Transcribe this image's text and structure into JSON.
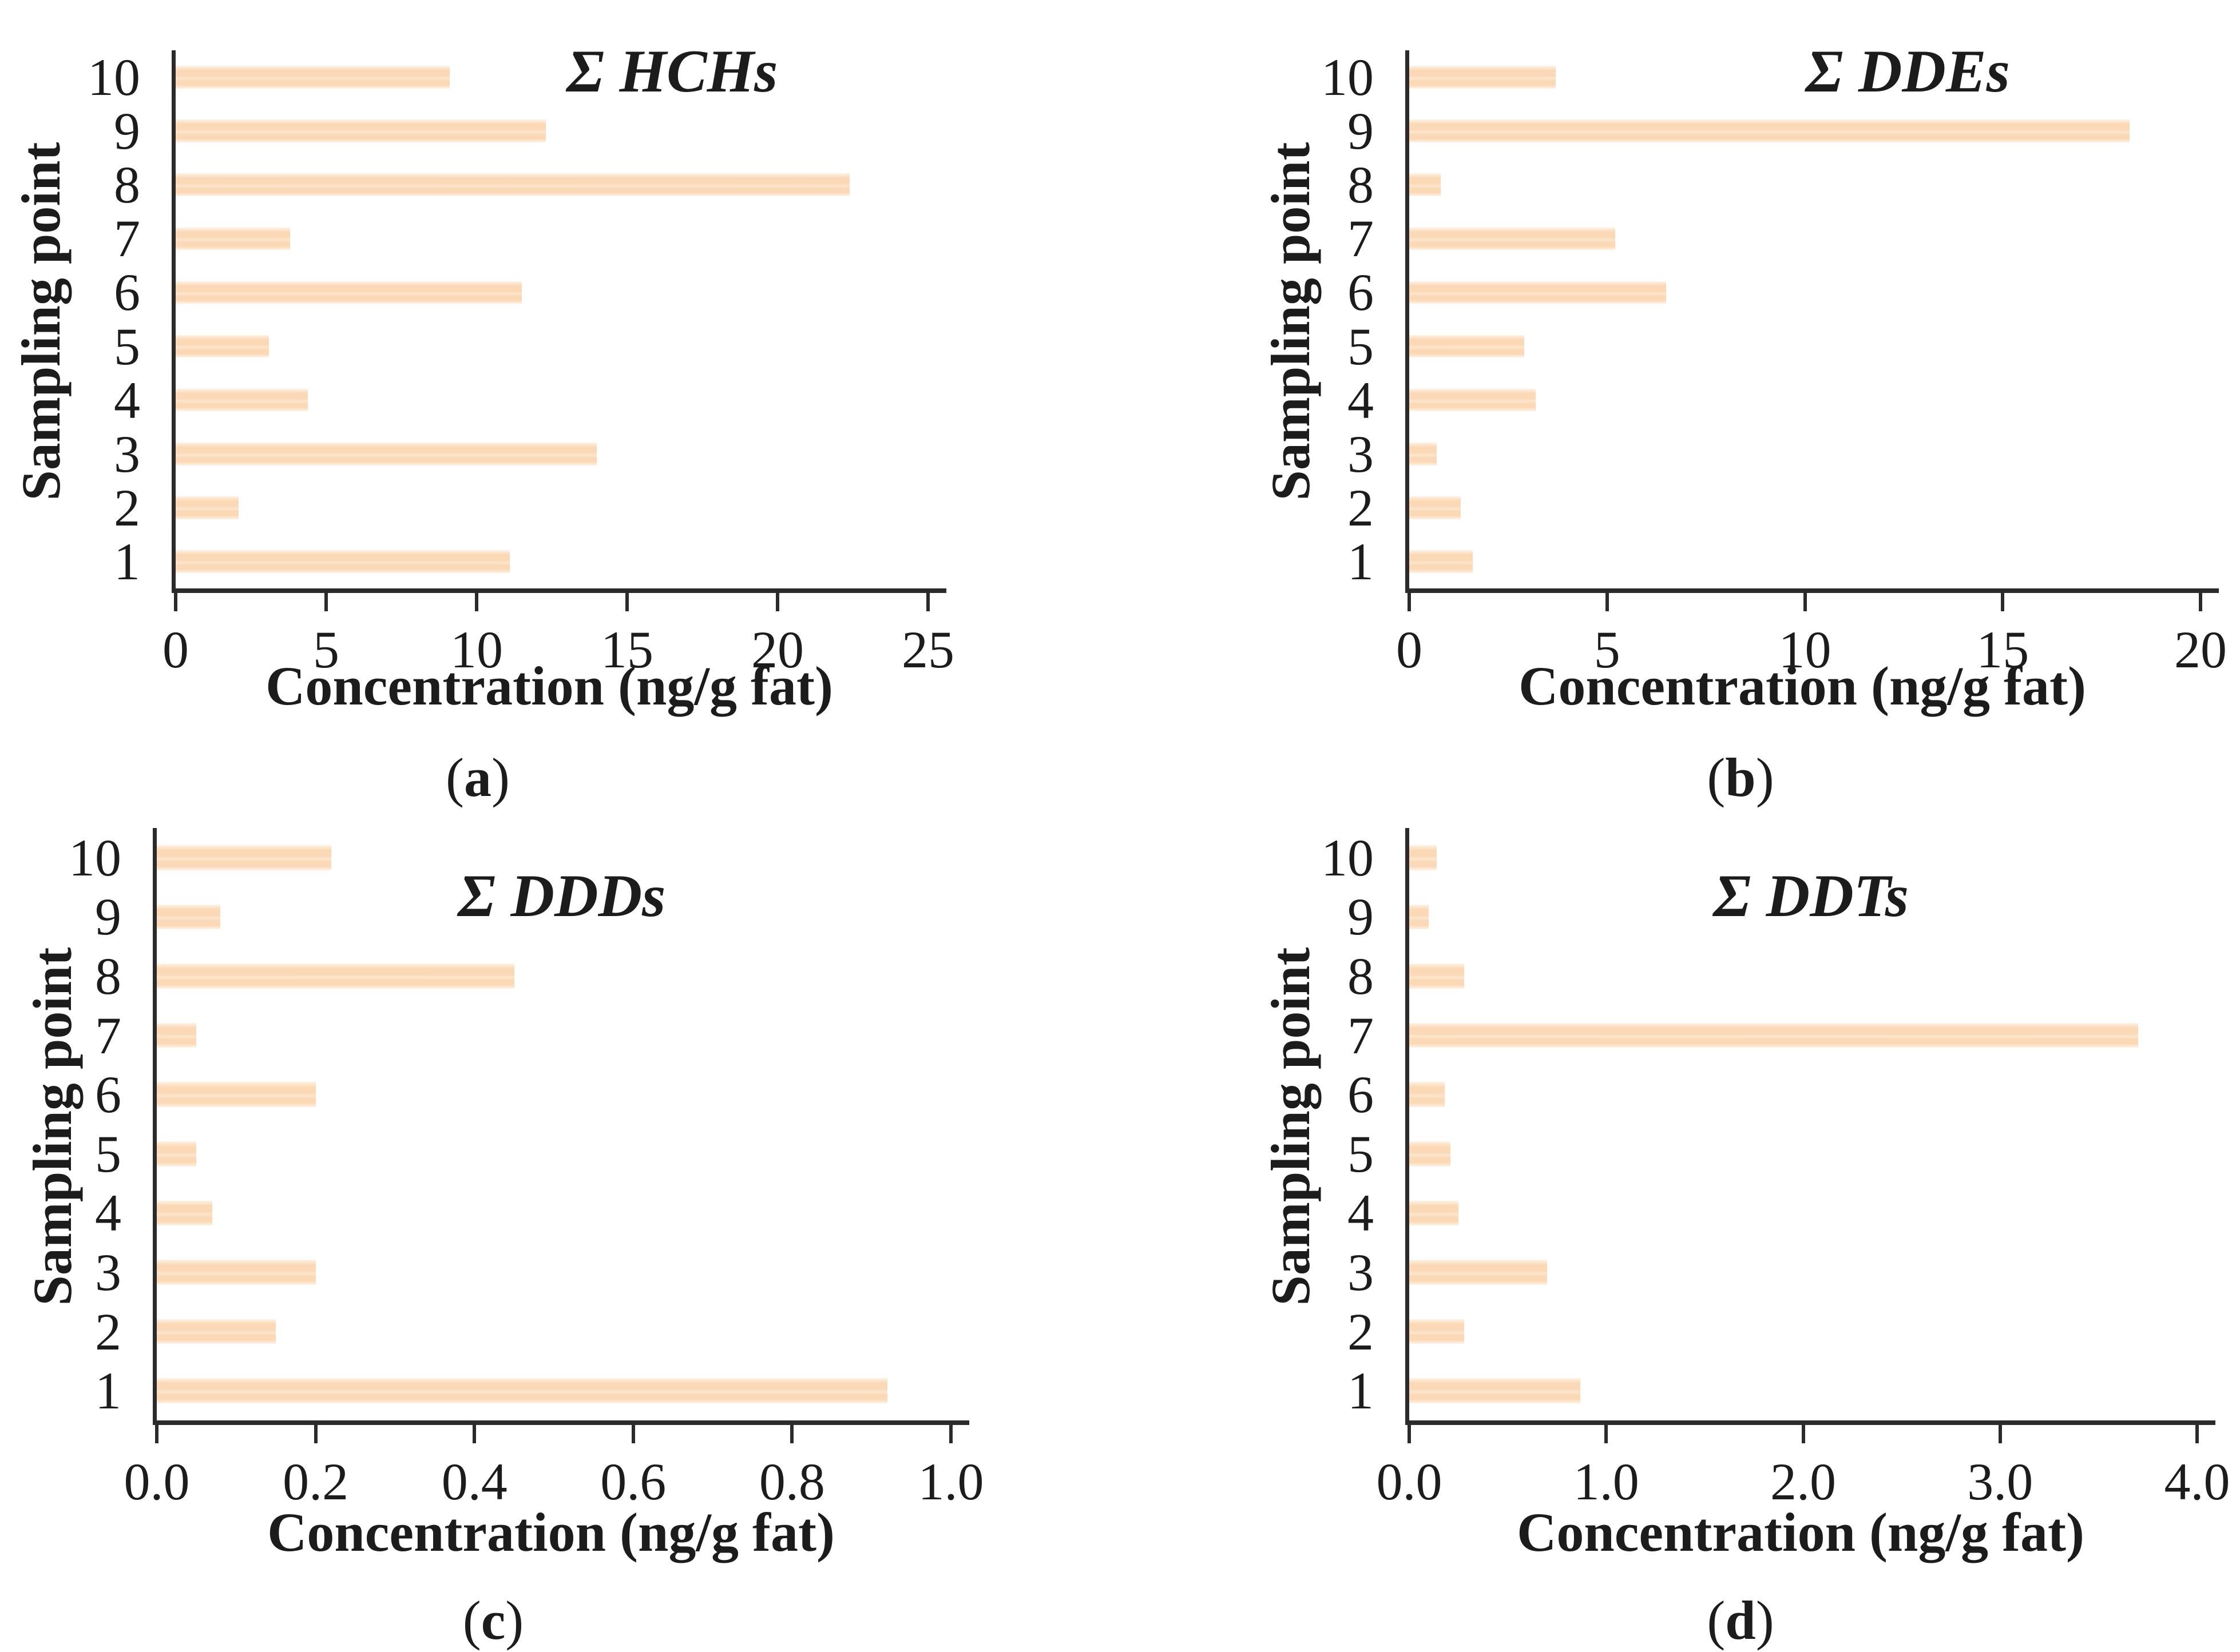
{
  "figure": {
    "background": "#ffffff",
    "text_color": "#1c1c1c",
    "axis_color": "#2b2b2b",
    "bar_fill_color": "#fbd9b6",
    "bar_edge_highlight_color": "#fef2e4",
    "paren_open": "(",
    "paren_close": ")"
  },
  "chart_data": [
    {
      "id": "a",
      "type": "bar",
      "orientation": "horizontal",
      "title": "Σ HCHs",
      "caption_letter": "a",
      "xlabel": "Concentration (ng/g fat)",
      "ylabel": "Sampling point",
      "xlim": [
        0,
        25
      ],
      "xticks": [
        "0",
        "5",
        "10",
        "15",
        "20",
        "25"
      ],
      "grid": "off",
      "legend": "none",
      "categories": [
        "10",
        "9",
        "8",
        "7",
        "6",
        "5",
        "4",
        "3",
        "2",
        "1"
      ],
      "values": [
        9.1,
        12.3,
        22.4,
        3.8,
        11.5,
        3.1,
        4.4,
        14.0,
        2.1,
        11.1
      ]
    },
    {
      "id": "b",
      "type": "bar",
      "orientation": "horizontal",
      "title": "Σ DDEs",
      "caption_letter": "b",
      "xlabel": "Concentration (ng/g fat)",
      "ylabel": "Sampling point",
      "xlim": [
        0,
        20
      ],
      "xticks": [
        "0",
        "5",
        "10",
        "15",
        "20"
      ],
      "grid": "off",
      "legend": "none",
      "categories": [
        "10",
        "9",
        "8",
        "7",
        "6",
        "5",
        "4",
        "3",
        "2",
        "1"
      ],
      "values": [
        3.7,
        18.2,
        0.8,
        5.2,
        6.5,
        2.9,
        3.2,
        0.7,
        1.3,
        1.6
      ]
    },
    {
      "id": "c",
      "type": "bar",
      "orientation": "horizontal",
      "title": "Σ DDDs",
      "caption_letter": "c",
      "xlabel": "Concentration (ng/g fat)",
      "ylabel": "Sampling point",
      "xlim": [
        0,
        1.0
      ],
      "xticks": [
        "0.0",
        "0.2",
        "0.4",
        "0.6",
        "0.8",
        "1.0"
      ],
      "grid": "off",
      "legend": "none",
      "categories": [
        "10",
        "9",
        "8",
        "7",
        "6",
        "5",
        "4",
        "3",
        "2",
        "1"
      ],
      "values": [
        0.22,
        0.08,
        0.45,
        0.05,
        0.2,
        0.05,
        0.07,
        0.2,
        0.15,
        0.92
      ]
    },
    {
      "id": "d",
      "type": "bar",
      "orientation": "horizontal",
      "title": "Σ DDTs",
      "caption_letter": "d",
      "xlabel": "Concentration (ng/g fat)",
      "ylabel": "Sampling point",
      "xlim": [
        0,
        4.0
      ],
      "xticks": [
        "0.0",
        "1.0",
        "2.0",
        "3.0",
        "4.0"
      ],
      "grid": "off",
      "legend": "none",
      "categories": [
        "10",
        "9",
        "8",
        "7",
        "6",
        "5",
        "4",
        "3",
        "2",
        "1"
      ],
      "values": [
        0.14,
        0.1,
        0.28,
        3.7,
        0.18,
        0.21,
        0.25,
        0.7,
        0.28,
        0.87
      ]
    }
  ]
}
